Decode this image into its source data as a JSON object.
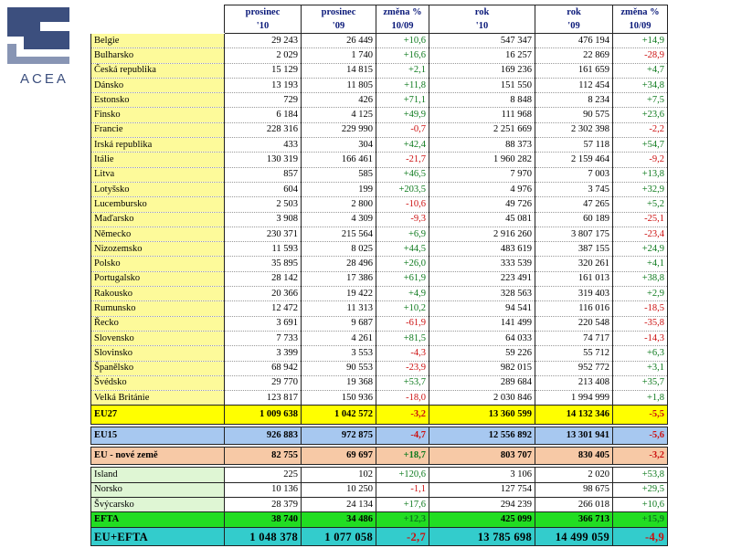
{
  "logo": {
    "text": "ACEA"
  },
  "colors": {
    "positive": "#0e7a1e",
    "negative": "#cc1010"
  },
  "headers": [
    {
      "l1": "prosinec",
      "l2": "'10"
    },
    {
      "l1": "prosinec",
      "l2": "'09"
    },
    {
      "l1": "změna %",
      "l2": "10/09"
    },
    {
      "l1": "rok",
      "l2": "'10"
    },
    {
      "l1": "rok",
      "l2": "'09"
    },
    {
      "l1": "změna %",
      "l2": "10/09"
    }
  ],
  "countries": [
    {
      "name": "Belgie",
      "v": [
        "29 243",
        "26 449",
        "+10,6",
        "547 347",
        "476 194",
        "+14,9"
      ]
    },
    {
      "name": "Bulharsko",
      "v": [
        "2 029",
        "1 740",
        "+16,6",
        "16 257",
        "22 869",
        "-28,9"
      ]
    },
    {
      "name": "Česká republika",
      "v": [
        "15 129",
        "14 815",
        "+2,1",
        "169 236",
        "161 659",
        "+4,7"
      ]
    },
    {
      "name": "Dánsko",
      "v": [
        "13 193",
        "11 805",
        "+11,8",
        "151 550",
        "112 454",
        "+34,8"
      ]
    },
    {
      "name": "Estonsko",
      "v": [
        "729",
        "426",
        "+71,1",
        "8 848",
        "8 234",
        "+7,5"
      ]
    },
    {
      "name": "Finsko",
      "v": [
        "6 184",
        "4 125",
        "+49,9",
        "111 968",
        "90 575",
        "+23,6"
      ]
    },
    {
      "name": "Francie",
      "v": [
        "228 316",
        "229 990",
        "-0,7",
        "2 251 669",
        "2 302 398",
        "-2,2"
      ]
    },
    {
      "name": "Irská republika",
      "v": [
        "433",
        "304",
        "+42,4",
        "88 373",
        "57 118",
        "+54,7"
      ]
    },
    {
      "name": "Itálie",
      "v": [
        "130 319",
        "166 461",
        "-21,7",
        "1 960 282",
        "2 159 464",
        "-9,2"
      ]
    },
    {
      "name": "Litva",
      "v": [
        "857",
        "585",
        "+46,5",
        "7 970",
        "7 003",
        "+13,8"
      ]
    },
    {
      "name": "Lotyšsko",
      "v": [
        "604",
        "199",
        "+203,5",
        "4 976",
        "3 745",
        "+32,9"
      ]
    },
    {
      "name": "Lucembursko",
      "v": [
        "2 503",
        "2 800",
        "-10,6",
        "49 726",
        "47 265",
        "+5,2"
      ]
    },
    {
      "name": "Maďarsko",
      "v": [
        "3 908",
        "4 309",
        "-9,3",
        "45 081",
        "60 189",
        "-25,1"
      ]
    },
    {
      "name": "Německo",
      "v": [
        "230 371",
        "215 564",
        "+6,9",
        "2 916 260",
        "3 807 175",
        "-23,4"
      ]
    },
    {
      "name": "Nizozemsko",
      "v": [
        "11 593",
        "8 025",
        "+44,5",
        "483 619",
        "387 155",
        "+24,9"
      ]
    },
    {
      "name": "Polsko",
      "v": [
        "35 895",
        "28 496",
        "+26,0",
        "333 539",
        "320 261",
        "+4,1"
      ]
    },
    {
      "name": "Portugalsko",
      "v": [
        "28 142",
        "17 386",
        "+61,9",
        "223 491",
        "161 013",
        "+38,8"
      ]
    },
    {
      "name": "Rakousko",
      "v": [
        "20 366",
        "19 422",
        "+4,9",
        "328 563",
        "319 403",
        "+2,9"
      ]
    },
    {
      "name": "Rumunsko",
      "v": [
        "12 472",
        "11 313",
        "+10,2",
        "94 541",
        "116 016",
        "-18,5"
      ]
    },
    {
      "name": "Řecko",
      "v": [
        "3 691",
        "9 687",
        "-61,9",
        "141 499",
        "220 548",
        "-35,8"
      ]
    },
    {
      "name": "Slovensko",
      "v": [
        "7 733",
        "4 261",
        "+81,5",
        "64 033",
        "74 717",
        "-14,3"
      ]
    },
    {
      "name": "Slovinsko",
      "v": [
        "3 399",
        "3 553",
        "-4,3",
        "59 226",
        "55 712",
        "+6,3"
      ]
    },
    {
      "name": "Španělsko",
      "v": [
        "68 942",
        "90 553",
        "-23,9",
        "982 015",
        "952 772",
        "+3,1"
      ]
    },
    {
      "name": "Švédsko",
      "v": [
        "29 770",
        "19 368",
        "+53,7",
        "289 684",
        "213 408",
        "+35,7"
      ]
    },
    {
      "name": "Velká Británie",
      "v": [
        "123 817",
        "150 936",
        "-18,0",
        "2 030 846",
        "1 994 999",
        "+1,8"
      ]
    }
  ],
  "eu27": {
    "name": "EU27",
    "v": [
      "1 009 638",
      "1 042 572",
      "-3,2",
      "13 360 599",
      "14 132 346",
      "-5,5"
    ]
  },
  "eu15": {
    "name": "EU15",
    "v": [
      "926 883",
      "972 875",
      "-4,7",
      "12 556 892",
      "13 301 941",
      "-5,6"
    ]
  },
  "eunew": {
    "name": "EU - nové země",
    "v": [
      "82 755",
      "69 697",
      "+18,7",
      "803 707",
      "830 405",
      "-3,2"
    ]
  },
  "efta_countries": [
    {
      "name": "Island",
      "v": [
        "225",
        "102",
        "+120,6",
        "3 106",
        "2 020",
        "+53,8"
      ]
    },
    {
      "name": "Norsko",
      "v": [
        "10 136",
        "10 250",
        "-1,1",
        "127 754",
        "98 675",
        "+29,5"
      ]
    },
    {
      "name": "Švýcarsko",
      "v": [
        "28 379",
        "24 134",
        "+17,6",
        "294 239",
        "266 018",
        "+10,6"
      ]
    }
  ],
  "efta": {
    "name": "EFTA",
    "v": [
      "38 740",
      "34 486",
      "+12,3",
      "425 099",
      "366 713",
      "+15,9"
    ]
  },
  "euefta": {
    "name": "EU+EFTA",
    "v": [
      "1 048 378",
      "1 077 058",
      "-2,7",
      "13 785 698",
      "14 499 059",
      "-4,9"
    ]
  }
}
